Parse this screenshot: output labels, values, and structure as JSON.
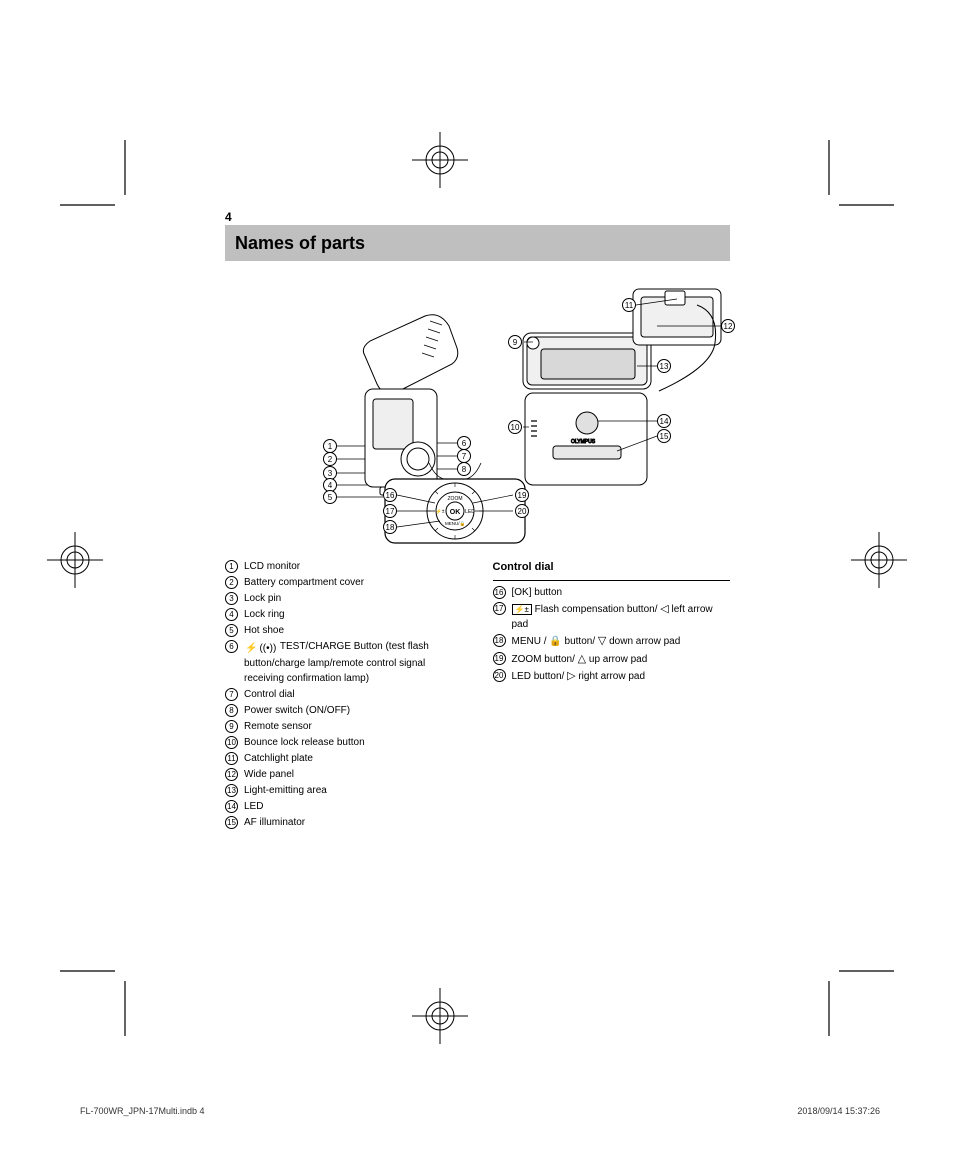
{
  "page": {
    "number": "4",
    "title": "Names of parts"
  },
  "parts_left": [
    {
      "n": "1",
      "label": "LCD monitor"
    },
    {
      "n": "2",
      "label": "Battery compartment cover"
    },
    {
      "n": "3",
      "label": "Lock pin"
    },
    {
      "n": "4",
      "label": "Lock ring"
    },
    {
      "n": "5",
      "label": "Hot shoe"
    },
    {
      "n": "6",
      "label_prefix": "",
      "label": "TEST/CHARGE Button (test flash button/charge lamp/remote control signal receiving confirmation lamp)",
      "icons": [
        "flash",
        "sound"
      ]
    },
    {
      "n": "7",
      "label": "Control dial"
    },
    {
      "n": "8",
      "label": "Power switch (ON/OFF)"
    },
    {
      "n": "9",
      "label": "Remote sensor"
    },
    {
      "n": "10",
      "label": "Bounce lock release button"
    },
    {
      "n": "11",
      "label": "Catchlight plate"
    },
    {
      "n": "12",
      "label": "Wide panel"
    },
    {
      "n": "13",
      "label": "Light-emitting area"
    },
    {
      "n": "14",
      "label": "LED"
    },
    {
      "n": "15",
      "label": "AF illuminator"
    }
  ],
  "dial_header": "Control dial",
  "parts_right": [
    {
      "n": "16",
      "label": "[OK] button"
    },
    {
      "n": "17",
      "label_html": "Flash compensation button/left arrow pad"
    },
    {
      "n": "18",
      "label_html": "MENU / lock button/down arrow pad"
    },
    {
      "n": "19",
      "label_html": "ZOOM button/up arrow pad"
    },
    {
      "n": "20",
      "label_html": "LED button/right arrow pad"
    }
  ],
  "footer": {
    "left": "FL-700WR_JPN-17Multi.indb   4",
    "right": "2018/09/14   15:37:26"
  },
  "colors": {
    "titlebar": "#bfbfbf",
    "line": "#000000"
  }
}
